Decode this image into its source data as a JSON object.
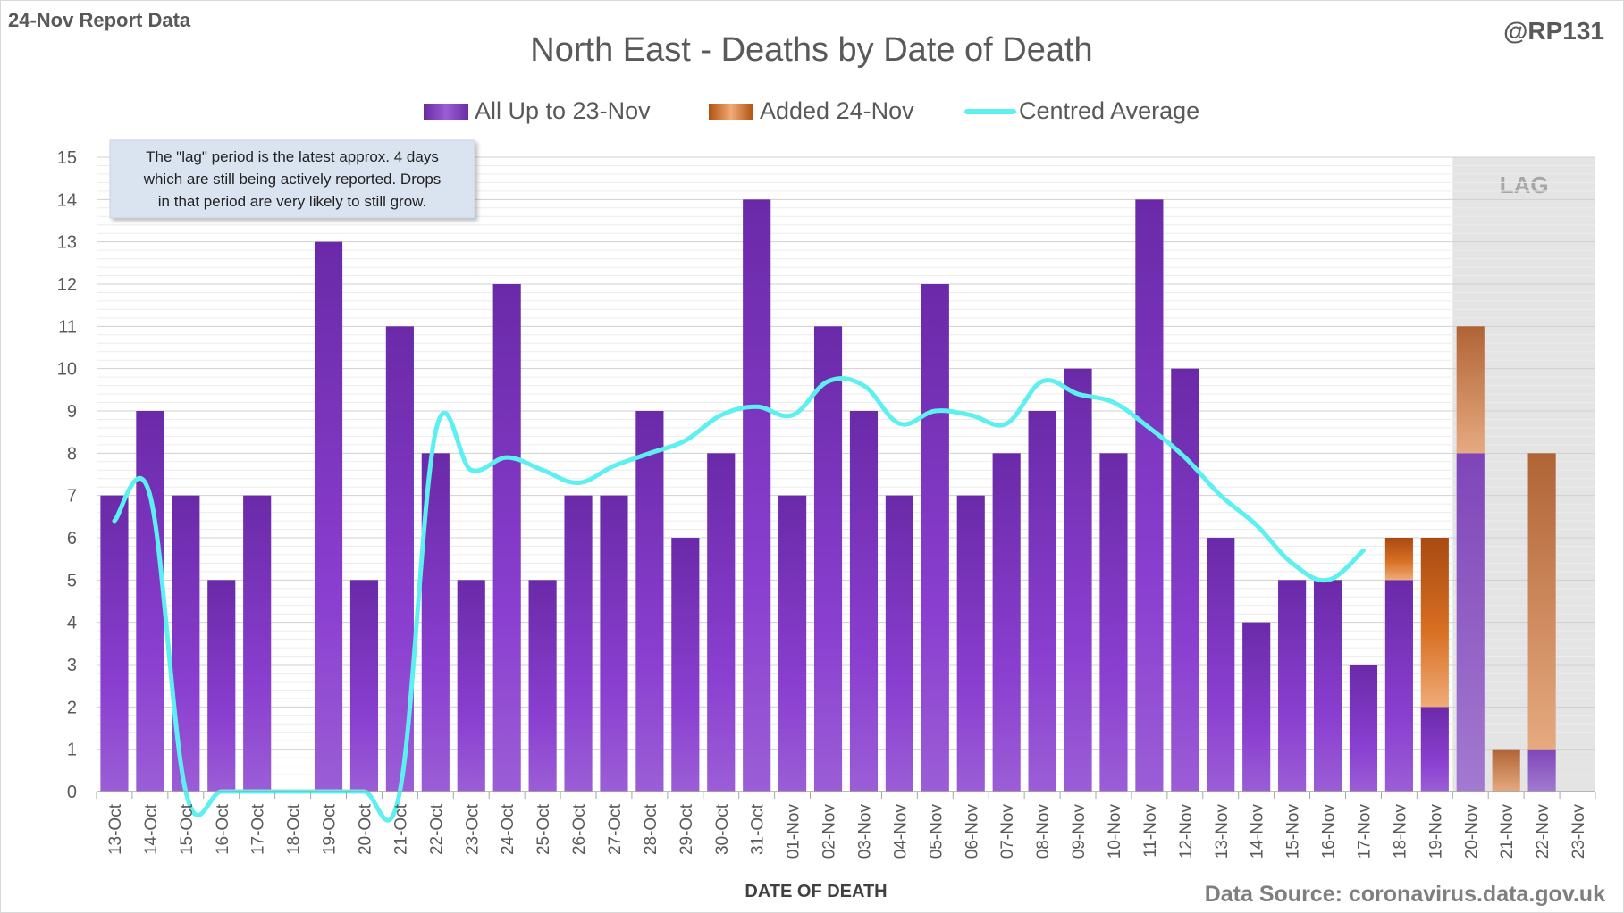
{
  "header": {
    "report_label": "24-Nov Report Data",
    "handle": "@RP131",
    "source": "Data Source: coronavirus.data.gov.uk"
  },
  "note": {
    "lines": [
      "The \"lag\" period is the latest approx. 4 days",
      "which are still being actively reported.  Drops",
      "in that period are very likely to still grow."
    ]
  },
  "colors": {
    "purple_bar": "#7b35c0",
    "orange_bar": "#c8641e",
    "average_line": "#5ef0f0",
    "lag_shade": "#e4e4e4",
    "text": "#595959"
  },
  "chart_data": {
    "type": "bar",
    "title": "North East - Deaths by Date of Death",
    "xlabel": "DATE OF DEATH",
    "ylabel": "",
    "ylim": [
      0,
      15
    ],
    "yticks": [
      0,
      1,
      2,
      3,
      4,
      5,
      6,
      7,
      8,
      9,
      10,
      11,
      12,
      13,
      14,
      15
    ],
    "stacked": true,
    "grid": true,
    "legend_position": "top",
    "lag_label": "LAG",
    "lag_categories": [
      "20-Nov",
      "21-Nov",
      "22-Nov",
      "23-Nov"
    ],
    "categories": [
      "13-Oct",
      "14-Oct",
      "15-Oct",
      "16-Oct",
      "17-Oct",
      "18-Oct",
      "19-Oct",
      "20-Oct",
      "21-Oct",
      "22-Oct",
      "23-Oct",
      "24-Oct",
      "25-Oct",
      "26-Oct",
      "27-Oct",
      "28-Oct",
      "29-Oct",
      "30-Oct",
      "31-Oct",
      "01-Nov",
      "02-Nov",
      "03-Nov",
      "04-Nov",
      "05-Nov",
      "06-Nov",
      "07-Nov",
      "08-Nov",
      "09-Nov",
      "10-Nov",
      "11-Nov",
      "12-Nov",
      "13-Nov",
      "14-Nov",
      "15-Nov",
      "16-Nov",
      "17-Nov",
      "18-Nov",
      "19-Nov",
      "20-Nov",
      "21-Nov",
      "22-Nov",
      "23-Nov"
    ],
    "series": [
      {
        "name": "All Up to 23-Nov",
        "kind": "bar",
        "values": [
          7,
          9,
          7,
          5,
          7,
          0,
          13,
          5,
          11,
          8,
          5,
          12,
          5,
          7,
          7,
          9,
          6,
          8,
          14,
          7,
          11,
          9,
          7,
          12,
          7,
          8,
          9,
          10,
          8,
          14,
          10,
          6,
          4,
          5,
          5,
          3,
          5,
          2,
          8,
          0,
          1,
          0
        ]
      },
      {
        "name": "Added 24-Nov",
        "kind": "bar",
        "values": [
          0,
          0,
          0,
          0,
          0,
          0,
          0,
          0,
          0,
          0,
          0,
          0,
          0,
          0,
          0,
          0,
          0,
          0,
          0,
          0,
          0,
          0,
          0,
          0,
          0,
          0,
          0,
          0,
          0,
          0,
          0,
          0,
          0,
          0,
          0,
          0,
          1,
          4,
          3,
          1,
          7,
          0
        ]
      },
      {
        "name": "Centred Average",
        "kind": "line",
        "values": [
          6.4,
          7.0,
          0,
          0,
          0,
          0,
          0,
          0,
          0,
          8.5,
          7.6,
          7.9,
          7.6,
          7.3,
          7.7,
          8.0,
          8.3,
          8.9,
          9.1,
          8.9,
          9.7,
          9.6,
          8.7,
          9.0,
          8.9,
          8.7,
          9.7,
          9.4,
          9.2,
          8.6,
          7.9,
          7.0,
          6.3,
          5.4,
          5.0,
          5.7,
          null,
          null,
          null,
          null,
          null,
          null
        ]
      }
    ]
  }
}
